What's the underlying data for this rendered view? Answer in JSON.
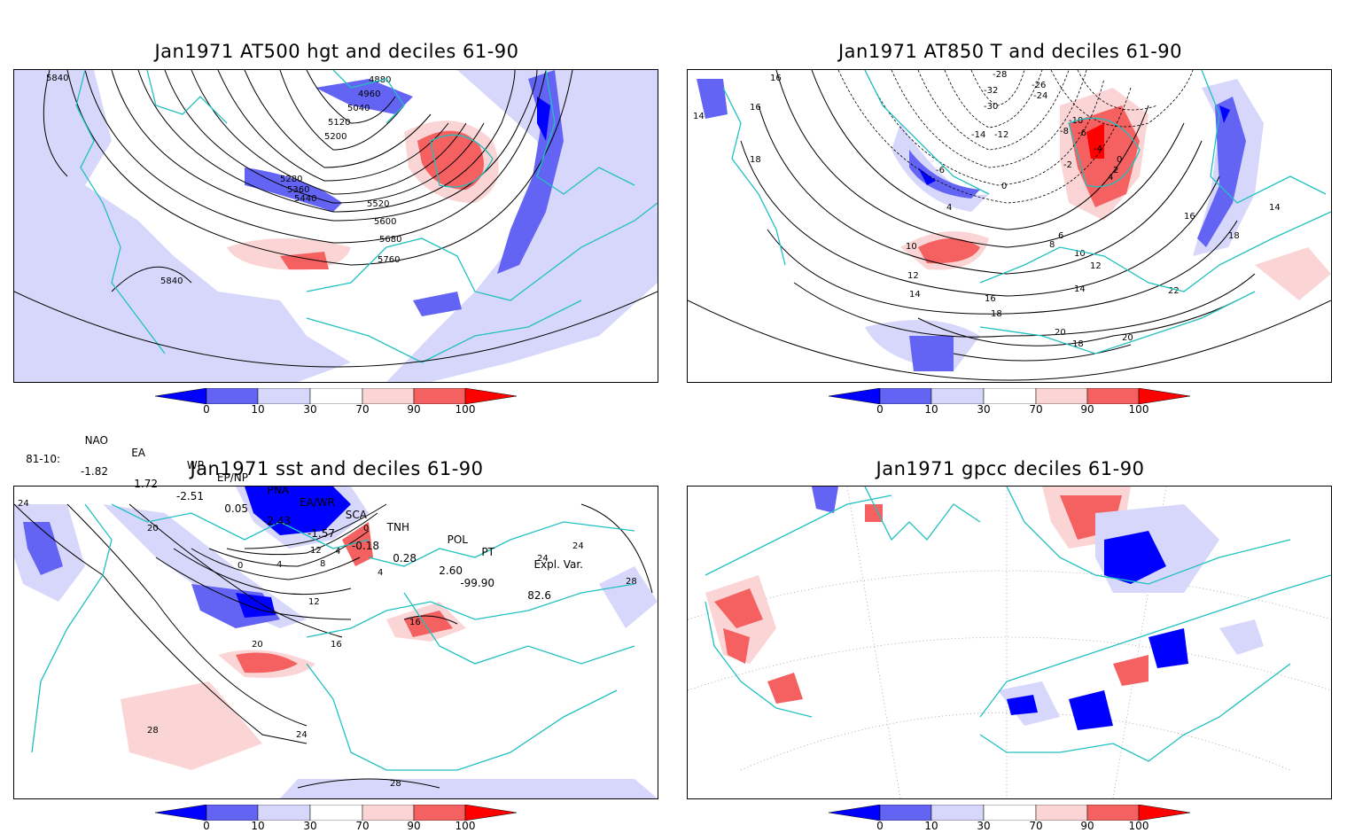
{
  "panels": [
    {
      "title": "Jan1971 AT500 hgt and deciles 61-90",
      "contour_labels": [
        "5840",
        "4880",
        "4960",
        "5040",
        "5120",
        "5200",
        "5280",
        "5360",
        "5440",
        "5520",
        "5600",
        "5680",
        "5760",
        "5840"
      ]
    },
    {
      "title": "Jan1971 AT850 T and deciles 61-90",
      "contour_labels": [
        "16",
        "14",
        "16",
        "18",
        "-28",
        "-32",
        "-26",
        "-24",
        "-30",
        "-10",
        "-8",
        "-6",
        "-12",
        "-14",
        "-4",
        "-2",
        "0",
        "2",
        "4",
        "-6",
        "0",
        "4",
        "6",
        "8",
        "10",
        "10",
        "12",
        "12",
        "14",
        "14",
        "16",
        "18",
        "18",
        "20",
        "20",
        "22",
        "16",
        "18",
        "14"
      ]
    },
    {
      "title": "Jan1971 sst and deciles 61-90",
      "contour_labels": [
        "24",
        "20",
        "0",
        "4",
        "8",
        "12",
        "16",
        "16",
        "20",
        "24",
        "28",
        "28",
        "24",
        "28",
        "12",
        "4",
        "0",
        "24",
        "4"
      ]
    },
    {
      "title": "Jan1971 gpcc deciles 61-90",
      "contour_labels": []
    }
  ],
  "colorbar": {
    "ticks": [
      "0",
      "10",
      "30",
      "70",
      "90",
      "100"
    ],
    "colors": [
      "#0000ff",
      "#6464f4",
      "#d7d7fb",
      "#ffffff",
      "#fbd5d5",
      "#f56060",
      "#ff0000"
    ]
  },
  "indices": {
    "headers": [
      "NAO",
      "EA",
      "WP",
      "EP/NP",
      "PNA",
      "EA/WR",
      "SCA",
      "TNH",
      "POL",
      "PT",
      "Expl. Var."
    ],
    "row_label": "81-10:",
    "values": [
      "-1.82",
      "1.72",
      "-2.51",
      "0.05",
      "-2.43",
      "-1.57",
      "-0.18",
      "0.28",
      "2.60",
      "-99.90",
      "82.6"
    ]
  },
  "colors": {
    "coast": "#20c0c0",
    "grid": "#9a9a9a",
    "contour": "#000000"
  }
}
